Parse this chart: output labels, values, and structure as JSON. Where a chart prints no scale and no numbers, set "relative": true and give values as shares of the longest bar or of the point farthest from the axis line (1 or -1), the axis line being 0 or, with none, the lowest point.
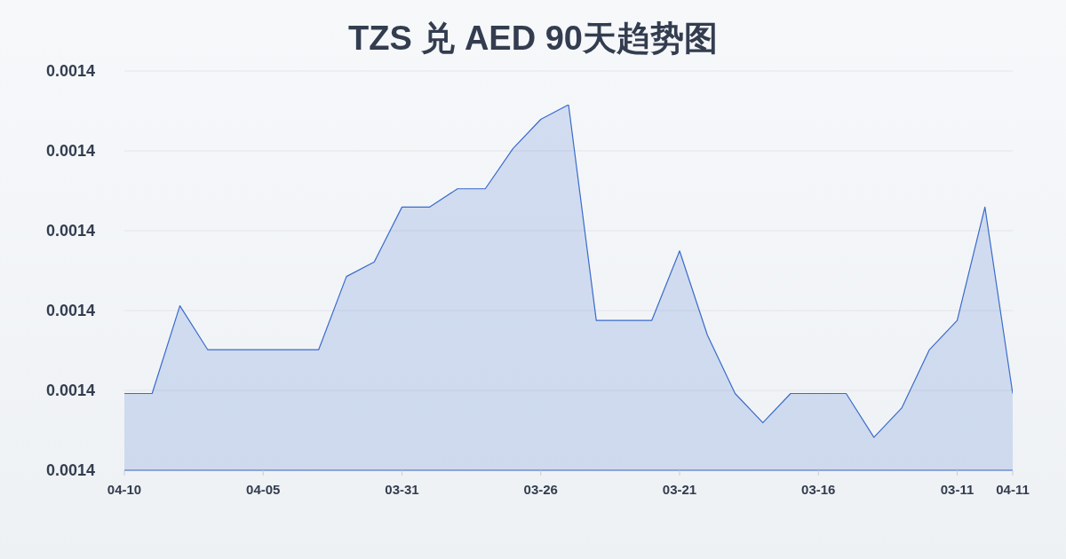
{
  "chart_data": {
    "type": "area",
    "title": "TZS 兑 AED 90天趋势图",
    "categories": [
      "04-10",
      null,
      null,
      null,
      null,
      "04-05",
      null,
      null,
      null,
      null,
      "03-31",
      null,
      null,
      null,
      null,
      "03-26",
      null,
      null,
      null,
      null,
      "03-21",
      null,
      null,
      null,
      null,
      "03-16",
      null,
      null,
      null,
      null,
      "03-11",
      null,
      "04-11"
    ],
    "values": [
      0.21,
      0.21,
      0.45,
      0.33,
      0.33,
      0.33,
      0.33,
      0.33,
      0.53,
      0.57,
      0.72,
      0.72,
      0.77,
      0.77,
      0.88,
      0.96,
      1,
      0.41,
      0.41,
      0.41,
      0.6,
      0.37,
      0.21,
      0.13,
      0.21,
      0.21,
      0.21,
      0.09,
      0.17,
      0.33,
      0.41,
      0.72,
      0.21
    ],
    "color": "#3a6bcb",
    "relative": true,
    "annotations": [
      "0.0014",
      "0.0014",
      "0.0014",
      "0.0014",
      "0.0014",
      "0.0014"
    ],
    "grid": "y"
  }
}
